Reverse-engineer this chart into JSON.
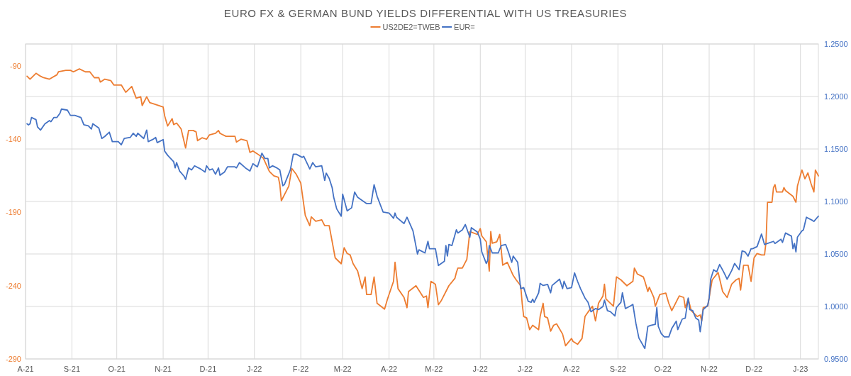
{
  "chart_data": {
    "type": "line",
    "title": "EURO FX & GERMAN BUND YIELDS DIFFERENTIAL WITH US TREASURIES",
    "legend": "top",
    "grid": true,
    "line_style": "solid",
    "xlim": [
      "2021-08-01",
      "2023-01-13"
    ],
    "xticks": [
      {
        "value": "2021-08-01",
        "label": "A-21"
      },
      {
        "value": "2021-09-01",
        "label": "S-21"
      },
      {
        "value": "2021-10-01",
        "label": "O-21"
      },
      {
        "value": "2021-11-01",
        "label": "N-21"
      },
      {
        "value": "2021-12-01",
        "label": "D-21"
      },
      {
        "value": "2022-01-01",
        "label": "J-22"
      },
      {
        "value": "2022-02-01",
        "label": "F-22"
      },
      {
        "value": "2022-03-01",
        "label": "M-22"
      },
      {
        "value": "2022-04-01",
        "label": "A-22"
      },
      {
        "value": "2022-05-01",
        "label": "M-22"
      },
      {
        "value": "2022-06-01",
        "label": "J-22"
      },
      {
        "value": "2022-07-01",
        "label": "J-22"
      },
      {
        "value": "2022-08-01",
        "label": "A-22"
      },
      {
        "value": "2022-09-01",
        "label": "S-22"
      },
      {
        "value": "2022-10-01",
        "label": "O-22"
      },
      {
        "value": "2022-11-01",
        "label": "N-22"
      },
      {
        "value": "2022-12-01",
        "label": "D-22"
      },
      {
        "value": "2023-01-01",
        "label": "J-23"
      }
    ],
    "ylim": [
      -290,
      -75
    ],
    "yticks": [
      -290,
      -240,
      -190,
      -140,
      -90
    ],
    "y2lim": [
      0.95,
      1.25
    ],
    "y2ticks": [
      {
        "value": 0.95,
        "label": "0.9500"
      },
      {
        "value": 1.0,
        "label": "1.0000"
      },
      {
        "value": 1.05,
        "label": "1.0500"
      },
      {
        "value": 1.1,
        "label": "1.1000"
      },
      {
        "value": 1.15,
        "label": "1.1500"
      },
      {
        "value": 1.2,
        "label": "1.2000"
      },
      {
        "value": 1.25,
        "label": "1.2500"
      }
    ],
    "series": [
      {
        "name": "US2DE2=TWEB",
        "color": "#ed7d31",
        "x": [
          "2021-08-02",
          "2021-08-04",
          "2021-08-08",
          "2021-08-11",
          "2021-08-13",
          "2021-08-17",
          "2021-08-22",
          "2021-08-23",
          "2021-08-28",
          "2021-08-31",
          "2021-09-02",
          "2021-09-06",
          "2021-09-10",
          "2021-09-13",
          "2021-09-16",
          "2021-09-19",
          "2021-09-20",
          "2021-09-23",
          "2021-09-27",
          "2021-09-29",
          "2021-10-04",
          "2021-10-07",
          "2021-10-11",
          "2021-10-14",
          "2021-10-17",
          "2021-10-18",
          "2021-10-21",
          "2021-10-23",
          "2021-10-26",
          "2021-11-01",
          "2021-11-02",
          "2021-11-04",
          "2021-11-07",
          "2021-11-08",
          "2021-11-10",
          "2021-11-13",
          "2021-11-16",
          "2021-11-18",
          "2021-11-21",
          "2021-11-23",
          "2021-11-24",
          "2021-11-27",
          "2021-11-30",
          "2021-12-02",
          "2021-12-06",
          "2021-12-08",
          "2021-12-09",
          "2021-12-13",
          "2021-12-19",
          "2021-12-20",
          "2021-12-23",
          "2021-12-27",
          "2021-12-29",
          "2021-12-31",
          "2022-01-03",
          "2022-01-07",
          "2022-01-11",
          "2022-01-14",
          "2022-01-17",
          "2022-01-18",
          "2022-01-19",
          "2022-01-22",
          "2022-01-24",
          "2022-01-26",
          "2022-01-29",
          "2022-02-01",
          "2022-02-04",
          "2022-02-07",
          "2022-02-08",
          "2022-02-11",
          "2022-02-15",
          "2022-02-17",
          "2022-02-20",
          "2022-02-24",
          "2022-02-28",
          "2022-03-02",
          "2022-03-04",
          "2022-03-06",
          "2022-03-08",
          "2022-03-11",
          "2022-03-14",
          "2022-03-16",
          "2022-03-17",
          "2022-03-20",
          "2022-03-22",
          "2022-03-24",
          "2022-03-29",
          "2022-03-31",
          "2022-04-04",
          "2022-04-05",
          "2022-04-07",
          "2022-04-11",
          "2022-04-13",
          "2022-04-14",
          "2022-04-19",
          "2022-04-24",
          "2022-04-26",
          "2022-04-27",
          "2022-04-29",
          "2022-05-02",
          "2022-05-04",
          "2022-05-06",
          "2022-05-11",
          "2022-05-15",
          "2022-05-16",
          "2022-05-17",
          "2022-05-20",
          "2022-05-23",
          "2022-05-25",
          "2022-05-30",
          "2022-06-01",
          "2022-06-02",
          "2022-06-05",
          "2022-06-07",
          "2022-06-08",
          "2022-06-09",
          "2022-06-12",
          "2022-06-14",
          "2022-06-16",
          "2022-06-19",
          "2022-06-23",
          "2022-06-25",
          "2022-06-28",
          "2022-06-29",
          "2022-06-30",
          "2022-07-02",
          "2022-07-04",
          "2022-07-06",
          "2022-07-10",
          "2022-07-11",
          "2022-07-13",
          "2022-07-14",
          "2022-07-16",
          "2022-07-18",
          "2022-07-20",
          "2022-07-22",
          "2022-07-26",
          "2022-07-28",
          "2022-08-01",
          "2022-08-02",
          "2022-08-05",
          "2022-08-08",
          "2022-08-10",
          "2022-08-12",
          "2022-08-15",
          "2022-08-17",
          "2022-08-19",
          "2022-08-22",
          "2022-08-23",
          "2022-08-24",
          "2022-08-29",
          "2022-08-31",
          "2022-09-03",
          "2022-09-07",
          "2022-09-11",
          "2022-09-12",
          "2022-09-14",
          "2022-09-18",
          "2022-09-19",
          "2022-09-21",
          "2022-09-22",
          "2022-09-25",
          "2022-09-26",
          "2022-09-29",
          "2022-10-03",
          "2022-10-05",
          "2022-10-07",
          "2022-10-09",
          "2022-10-12",
          "2022-10-15",
          "2022-10-16",
          "2022-10-18",
          "2022-10-20",
          "2022-10-24",
          "2022-10-26",
          "2022-10-27",
          "2022-10-28",
          "2022-10-31",
          "2022-11-03",
          "2022-11-07",
          "2022-11-10",
          "2022-11-13",
          "2022-11-16",
          "2022-11-19",
          "2022-11-21",
          "2022-11-22",
          "2022-11-24",
          "2022-11-27",
          "2022-11-29",
          "2022-12-01",
          "2022-12-03",
          "2022-12-06",
          "2022-12-08",
          "2022-12-09",
          "2022-12-10",
          "2022-12-13",
          "2022-12-14",
          "2022-12-15",
          "2022-12-16",
          "2022-12-20",
          "2022-12-21",
          "2022-12-22",
          "2022-12-27",
          "2022-12-29",
          "2022-12-30",
          "2023-01-02",
          "2023-01-04",
          "2023-01-06",
          "2023-01-08",
          "2023-01-10",
          "2023-01-11",
          "2023-01-13"
        ],
        "values": [
          -97,
          -99,
          -95,
          -97,
          -98,
          -99,
          -96,
          -94,
          -93,
          -93,
          -94,
          -92,
          -94,
          -94,
          -98,
          -98,
          -101,
          -99,
          -100,
          -103,
          -103,
          -108,
          -104,
          -112,
          -111,
          -117,
          -111,
          -115,
          -116,
          -118,
          -124,
          -131,
          -126,
          -130,
          -129,
          -133,
          -146,
          -134,
          -134,
          -135,
          -141,
          -139,
          -140,
          -137,
          -136,
          -134,
          -136,
          -138,
          -138,
          -142,
          -140,
          -141,
          -149,
          -148,
          -150,
          -153,
          -162,
          -165,
          -166,
          -171,
          -182,
          -176,
          -172,
          -160,
          -164,
          -170,
          -192,
          -199,
          -193,
          -196,
          -195,
          -199,
          -199,
          -221,
          -225,
          -214,
          -218,
          -219,
          -225,
          -230,
          -242,
          -234,
          -246,
          -246,
          -234,
          -252,
          -256,
          -249,
          -237,
          -224,
          -242,
          -248,
          -255,
          -244,
          -240,
          -248,
          -247,
          -255,
          -237,
          -239,
          -253,
          -250,
          -240,
          -235,
          -231,
          -228,
          -228,
          -222,
          -203,
          -205,
          -201,
          -206,
          -210,
          -230,
          -203,
          -211,
          -210,
          -205,
          -226,
          -224,
          -233,
          -236,
          -240,
          -252,
          -261,
          -262,
          -270,
          -267,
          -270,
          -261,
          -252,
          -261,
          -262,
          -271,
          -267,
          -266,
          -273,
          -281,
          -276,
          -278,
          -280,
          -276,
          -261,
          -258,
          -254,
          -264,
          -252,
          -247,
          -239,
          -249,
          -254,
          -234,
          -236,
          -240,
          -237,
          -228,
          -232,
          -234,
          -237,
          -244,
          -241,
          -248,
          -254,
          -246,
          -245,
          -252,
          -257,
          -253,
          -247,
          -248,
          -255,
          -249,
          -257,
          -261,
          -260,
          -264,
          -255,
          -254,
          -236,
          -231,
          -244,
          -248,
          -239,
          -236,
          -235,
          -243,
          -226,
          -226,
          -237,
          -221,
          -218,
          -219,
          -219,
          -210,
          -183,
          -183,
          -173,
          -171,
          -176,
          -176,
          -173,
          -175,
          -179,
          -183,
          -172,
          -161,
          -167,
          -163,
          -170,
          -176,
          -161,
          -165
        ]
      },
      {
        "name": "EUR=",
        "color": "#4472c4",
        "axis": "y2",
        "x": [
          "2021-08-02",
          "2021-08-03",
          "2021-08-04",
          "2021-08-05",
          "2021-08-08",
          "2021-08-09",
          "2021-08-11",
          "2021-08-14",
          "2021-08-17",
          "2021-08-18",
          "2021-08-20",
          "2021-08-22",
          "2021-08-24",
          "2021-08-25",
          "2021-08-29",
          "2021-08-31",
          "2021-09-03",
          "2021-09-07",
          "2021-09-09",
          "2021-09-12",
          "2021-09-14",
          "2021-09-15",
          "2021-09-19",
          "2021-09-21",
          "2021-09-23",
          "2021-09-26",
          "2021-09-28",
          "2021-10-02",
          "2021-10-04",
          "2021-10-06",
          "2021-10-10",
          "2021-10-12",
          "2021-10-14",
          "2021-10-15",
          "2021-10-19",
          "2021-10-21",
          "2021-10-22",
          "2021-10-25",
          "2021-10-27",
          "2021-10-28",
          "2021-11-01",
          "2021-11-02",
          "2021-11-04",
          "2021-11-08",
          "2021-11-09",
          "2021-11-10",
          "2021-11-12",
          "2021-11-15",
          "2021-11-16",
          "2021-11-18",
          "2021-11-20",
          "2021-11-22",
          "2021-11-26",
          "2021-11-29",
          "2021-11-30",
          "2021-12-02",
          "2021-12-04",
          "2021-12-06",
          "2021-12-08",
          "2021-12-09",
          "2021-12-12",
          "2021-12-14",
          "2021-12-19",
          "2021-12-20",
          "2021-12-22",
          "2021-12-26",
          "2021-12-29",
          "2021-12-31",
          "2022-01-03",
          "2022-01-06",
          "2022-01-08",
          "2022-01-10",
          "2022-01-11",
          "2022-01-13",
          "2022-01-16",
          "2022-01-18",
          "2022-01-20",
          "2022-01-21",
          "2022-01-25",
          "2022-01-27",
          "2022-01-29",
          "2022-02-02",
          "2022-02-03",
          "2022-02-06",
          "2022-02-07",
          "2022-02-09",
          "2022-02-11",
          "2022-02-15",
          "2022-02-17",
          "2022-02-18",
          "2022-02-20",
          "2022-02-22",
          "2022-02-23",
          "2022-02-25",
          "2022-02-28",
          "2022-03-01",
          "2022-03-04",
          "2022-03-07",
          "2022-03-09",
          "2022-03-11",
          "2022-03-14",
          "2022-03-17",
          "2022-03-20",
          "2022-03-22",
          "2022-03-24",
          "2022-03-28",
          "2022-04-01",
          "2022-04-04",
          "2022-04-05",
          "2022-04-06",
          "2022-04-11",
          "2022-04-13",
          "2022-04-17",
          "2022-04-20",
          "2022-04-21",
          "2022-04-25",
          "2022-04-27",
          "2022-04-28",
          "2022-05-02",
          "2022-05-04",
          "2022-05-05",
          "2022-05-08",
          "2022-05-09",
          "2022-05-10",
          "2022-05-11",
          "2022-05-13",
          "2022-05-16",
          "2022-05-17",
          "2022-05-20",
          "2022-05-22",
          "2022-05-25",
          "2022-05-26",
          "2022-05-30",
          "2022-06-01",
          "2022-06-02",
          "2022-06-05",
          "2022-06-06",
          "2022-06-07",
          "2022-06-09",
          "2022-06-13",
          "2022-06-15",
          "2022-06-18",
          "2022-06-20",
          "2022-06-22",
          "2022-06-23",
          "2022-06-26",
          "2022-06-28",
          "2022-06-30",
          "2022-07-03",
          "2022-07-05",
          "2022-07-06",
          "2022-07-07",
          "2022-07-10",
          "2022-07-11",
          "2022-07-13",
          "2022-07-16",
          "2022-07-18",
          "2022-07-19",
          "2022-07-24",
          "2022-07-26",
          "2022-07-27",
          "2022-07-29",
          "2022-08-01",
          "2022-08-03",
          "2022-08-05",
          "2022-08-07",
          "2022-08-10",
          "2022-08-12",
          "2022-08-14",
          "2022-08-17",
          "2022-08-19",
          "2022-08-22",
          "2022-08-23",
          "2022-08-25",
          "2022-08-27",
          "2022-08-30",
          "2022-08-31",
          "2022-09-03",
          "2022-09-04",
          "2022-09-06",
          "2022-09-10",
          "2022-09-11",
          "2022-09-13",
          "2022-09-15",
          "2022-09-19",
          "2022-09-21",
          "2022-09-23",
          "2022-09-26",
          "2022-09-27",
          "2022-09-28",
          "2022-09-30",
          "2022-10-02",
          "2022-10-05",
          "2022-10-07",
          "2022-10-10",
          "2022-10-11",
          "2022-10-14",
          "2022-10-16",
          "2022-10-18",
          "2022-10-19",
          "2022-10-21",
          "2022-10-23",
          "2022-10-25",
          "2022-10-26",
          "2022-10-28",
          "2022-10-31",
          "2022-11-01",
          "2022-11-02",
          "2022-11-04",
          "2022-11-06",
          "2022-11-08",
          "2022-11-11",
          "2022-11-13",
          "2022-11-16",
          "2022-11-18",
          "2022-11-21",
          "2022-11-23",
          "2022-11-25",
          "2022-11-27",
          "2022-11-29",
          "2022-11-30",
          "2022-12-03",
          "2022-12-06",
          "2022-12-08",
          "2022-12-10",
          "2022-12-14",
          "2022-12-15",
          "2022-12-17",
          "2022-12-19",
          "2022-12-20",
          "2022-12-22",
          "2022-12-26",
          "2022-12-27",
          "2022-12-28",
          "2022-12-29",
          "2022-12-30",
          "2023-01-02",
          "2023-01-03",
          "2023-01-05",
          "2023-01-09",
          "2023-01-10",
          "2023-01-13"
        ],
        "values": [
          1.174,
          1.173,
          1.174,
          1.18,
          1.178,
          1.171,
          1.168,
          1.174,
          1.177,
          1.176,
          1.18,
          1.18,
          1.184,
          1.188,
          1.187,
          1.182,
          1.182,
          1.18,
          1.173,
          1.172,
          1.169,
          1.174,
          1.17,
          1.16,
          1.162,
          1.166,
          1.157,
          1.157,
          1.154,
          1.16,
          1.161,
          1.165,
          1.162,
          1.165,
          1.16,
          1.168,
          1.157,
          1.159,
          1.161,
          1.156,
          1.159,
          1.148,
          1.144,
          1.138,
          1.132,
          1.137,
          1.129,
          1.124,
          1.121,
          1.132,
          1.13,
          1.134,
          1.131,
          1.128,
          1.134,
          1.13,
          1.131,
          1.126,
          1.132,
          1.125,
          1.128,
          1.133,
          1.133,
          1.132,
          1.137,
          1.132,
          1.129,
          1.136,
          1.133,
          1.146,
          1.141,
          1.141,
          1.132,
          1.134,
          1.132,
          1.13,
          1.115,
          1.116,
          1.13,
          1.145,
          1.145,
          1.142,
          1.143,
          1.134,
          1.131,
          1.137,
          1.133,
          1.134,
          1.12,
          1.127,
          1.122,
          1.113,
          1.104,
          1.093,
          1.086,
          1.107,
          1.091,
          1.094,
          1.109,
          1.104,
          1.101,
          1.098,
          1.098,
          1.116,
          1.105,
          1.09,
          1.089,
          1.084,
          1.089,
          1.085,
          1.079,
          1.085,
          1.072,
          1.05,
          1.054,
          1.051,
          1.062,
          1.055,
          1.055,
          1.039,
          1.04,
          1.043,
          1.058,
          1.048,
          1.059,
          1.058,
          1.073,
          1.07,
          1.073,
          1.078,
          1.066,
          1.075,
          1.071,
          1.064,
          1.052,
          1.041,
          1.044,
          1.058,
          1.051,
          1.051,
          1.058,
          1.059,
          1.051,
          1.042,
          1.048,
          1.042,
          1.017,
          1.018,
          1.005,
          1.004,
          1.007,
          1.004,
          1.013,
          1.022,
          1.02,
          1.021,
          1.013,
          1.02,
          1.026,
          1.017,
          1.024,
          1.017,
          1.018,
          1.032,
          1.024,
          1.017,
          1.008,
          1.004,
          0.995,
          0.998,
          0.997,
          1.0,
          1.006,
          0.996,
          0.995,
          0.991,
          0.999,
          1.004,
          1.013,
          0.998,
          1.001,
          1.002,
          0.984,
          0.97,
          0.96,
          0.981,
          0.982,
          0.983,
          0.999,
          0.981,
          0.974,
          0.971,
          0.971,
          0.979,
          0.986,
          0.978,
          0.988,
          0.989,
          1.008,
          0.997,
          0.996,
          0.989,
          0.987,
          0.976,
          0.997,
          1.001,
          1.008,
          1.026,
          1.035,
          1.033,
          1.04,
          1.032,
          1.026,
          1.034,
          1.041,
          1.035,
          1.053,
          1.052,
          1.048,
          1.055,
          1.055,
          1.057,
          1.069,
          1.059,
          1.06,
          1.062,
          1.06,
          1.062,
          1.064,
          1.061,
          1.07,
          1.067,
          1.055,
          1.06,
          1.052,
          1.066,
          1.072,
          1.073,
          1.085,
          1.082,
          1.081,
          1.086
        ]
      }
    ]
  }
}
